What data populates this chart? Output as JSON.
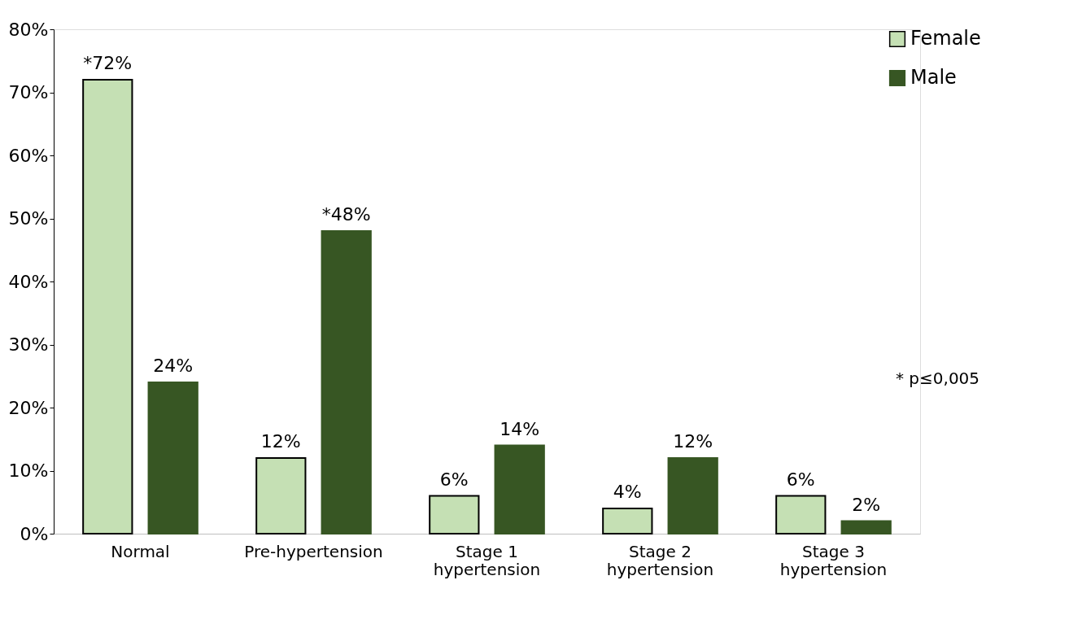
{
  "chart_data": {
    "type": "bar",
    "categories": [
      "Normal",
      "Pre-hypertension",
      "Stage 1 hypertension",
      "Stage 2 hypertension",
      "Stage 3 hypertension"
    ],
    "series": [
      {
        "name": "Female",
        "color": "#c5e0b4",
        "values": [
          72,
          12,
          6,
          4,
          6
        ],
        "value_labels": [
          "*72%",
          "12%",
          "6%",
          "4%",
          "6%"
        ]
      },
      {
        "name": "Male",
        "color": "#375623",
        "values": [
          24,
          48,
          14,
          12,
          2
        ],
        "value_labels": [
          "24%",
          "*48%",
          "14%",
          "12%",
          "2%"
        ]
      }
    ],
    "ylim": [
      0,
      80
    ],
    "yticks": [
      {
        "value": 0,
        "label": "0%"
      },
      {
        "value": 10,
        "label": "10%"
      },
      {
        "value": 20,
        "label": "20%"
      },
      {
        "value": 30,
        "label": "30%"
      },
      {
        "value": 40,
        "label": "40%"
      },
      {
        "value": 50,
        "label": "50%"
      },
      {
        "value": 60,
        "label": "60%"
      },
      {
        "value": 70,
        "label": "70%"
      },
      {
        "value": 80,
        "label": "80%"
      }
    ],
    "grid": false,
    "legend": "right",
    "annotations": [
      "* p≤0,005"
    ]
  }
}
